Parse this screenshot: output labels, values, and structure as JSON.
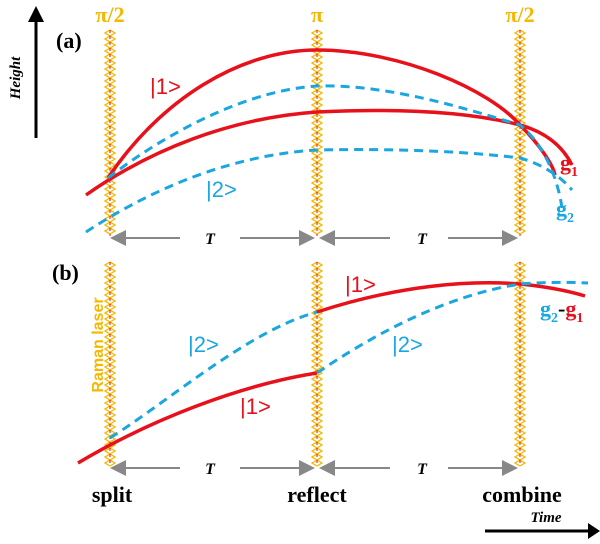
{
  "colors": {
    "state1": "#e8101a",
    "state2": "#1aa7e0",
    "laser": "#f5b700",
    "laser_center": "#e8101a",
    "arrow": "#888888",
    "text": "#000000"
  },
  "axes": {
    "height_label": "Height",
    "time_label": "Time"
  },
  "panel_a": {
    "label": "(a)",
    "pulses": [
      "π/2",
      "π",
      "π/2"
    ],
    "interval_labels": [
      "T",
      "T"
    ],
    "state1_label": "|1>",
    "state2_label": "|2>",
    "g1_label": "g",
    "g1_sub": "1",
    "g2_label": "g",
    "g2_sub": "2"
  },
  "panel_b": {
    "label": "(b)",
    "laser_label": "Raman laser",
    "interval_labels": [
      "T",
      "T"
    ],
    "state1_upper_label": "|1>",
    "state2_upper_label": "|2>",
    "state2_lower_label": "|2>",
    "state1_lower_label": "|1>",
    "g_diff": {
      "g2": "g",
      "g2_sub": "2",
      "dash": "-",
      "g1": "g",
      "g1_sub": "1"
    }
  },
  "stages": [
    "split",
    "reflect",
    "combine"
  ]
}
